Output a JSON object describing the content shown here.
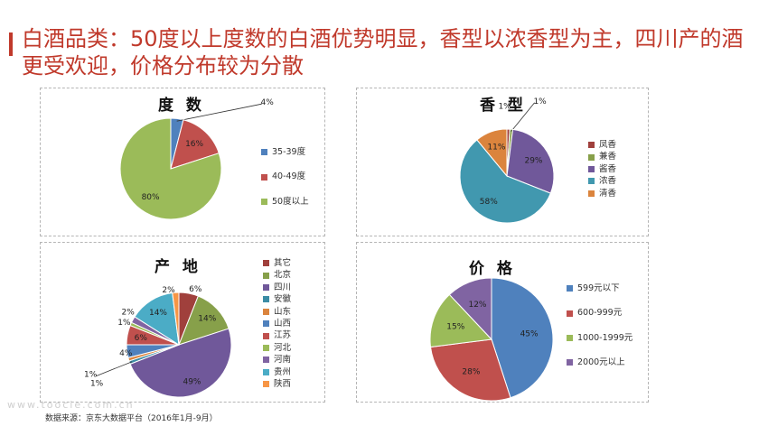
{
  "headline": "白酒品类：50度以上度数的白酒优势明显，香型以浓香型为主，四川产的酒更受欢迎，价格分布较为分散",
  "source": "数据来源：京东大数据平台（2016年1月-9月）",
  "watermark": "www.toocle.com.cn",
  "chart_data": [
    {
      "type": "pie",
      "title": "度 数",
      "categories": [
        "35-39度",
        "40-49度",
        "50度以上"
      ],
      "values": [
        4,
        16,
        80
      ],
      "labels": [
        "4%",
        "16%",
        "80%"
      ],
      "colors": [
        "#4f81bd",
        "#c0504d",
        "#9bbb59"
      ],
      "legend": "right"
    },
    {
      "type": "pie",
      "title": "香 型",
      "categories": [
        "凤香",
        "兼香",
        "酱香",
        "浓香",
        "清香"
      ],
      "values": [
        1,
        1,
        29,
        58,
        11
      ],
      "labels": [
        "1%",
        "1%",
        "29%",
        "58%",
        "11%"
      ],
      "colors": [
        "#a0403c",
        "#87a04a",
        "#70589a",
        "#4198af",
        "#db843d"
      ],
      "legend": "right"
    },
    {
      "type": "pie",
      "title": "产 地",
      "categories": [
        "其它",
        "北京",
        "四川",
        "安徽",
        "山东",
        "山西",
        "江苏",
        "河北",
        "河南",
        "贵州",
        "陕西"
      ],
      "values": [
        6,
        14,
        49,
        1,
        1,
        4,
        6,
        1,
        2,
        14,
        2
      ],
      "labels": [
        "6%",
        "14%",
        "49%",
        "1%",
        "1%",
        "4%",
        "6%",
        "1%",
        "2%",
        "14%",
        "2%"
      ],
      "colors": [
        "#a0403c",
        "#87a04a",
        "#70589a",
        "#3b8ca5",
        "#db843d",
        "#4f81bd",
        "#c0504d",
        "#9bbb59",
        "#8064a2",
        "#4bacc6",
        "#f79646"
      ],
      "legend": "right"
    },
    {
      "type": "pie",
      "title": "价 格",
      "categories": [
        "599元以下",
        "600-999元",
        "1000-1999元",
        "2000元以上"
      ],
      "values": [
        45,
        28,
        15,
        12
      ],
      "labels": [
        "45%",
        "28%",
        "15%",
        "12%"
      ],
      "colors": [
        "#4f81bd",
        "#c0504d",
        "#9bbb59",
        "#8064a2"
      ],
      "legend": "right"
    }
  ]
}
